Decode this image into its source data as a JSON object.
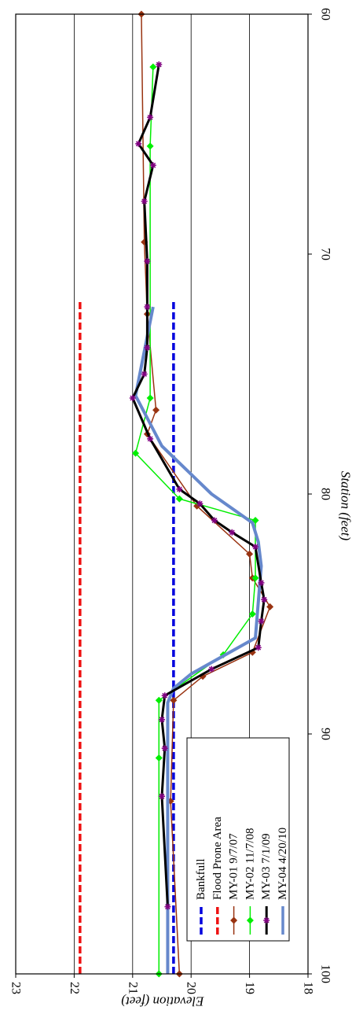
{
  "chart_data": {
    "type": "line",
    "xlabel": "Station (feet)",
    "ylabel": "Elevation (feet)",
    "xlim": [
      60,
      100
    ],
    "ylim": [
      18,
      23
    ],
    "x_ticks": [
      "60",
      "70",
      "80",
      "90",
      "100"
    ],
    "y_ticks": [
      "18",
      "19",
      "20",
      "21",
      "22",
      "23"
    ],
    "grid": "horizontal at each y tick",
    "orientation": "figure rotated 90 degrees clockwise",
    "legend_position": "lower-left",
    "series": [
      {
        "name": "Bankfull",
        "color": "#0000dd",
        "style": "dashed",
        "marker": "none",
        "x": [
          72.0,
          100.0
        ],
        "y": [
          20.3,
          20.3
        ]
      },
      {
        "name": "Flood Prone Area",
        "color": "#ee1111",
        "style": "dashed",
        "marker": "none",
        "x": [
          72.0,
          100.0
        ],
        "y": [
          21.9,
          21.9
        ]
      },
      {
        "name": "MY-01 9/7/07",
        "color": "#993311",
        "style": "solid",
        "marker": "diamond",
        "x": [
          60,
          69.5,
          72.5,
          76.5,
          77.5,
          80.5,
          82.5,
          83.5,
          84.7,
          86.6,
          87.6,
          88.6,
          92.8,
          100
        ],
        "y": [
          20.85,
          20.8,
          20.75,
          20.6,
          20.75,
          19.9,
          19.0,
          18.95,
          18.65,
          18.95,
          19.8,
          20.3,
          20.35,
          20.2
        ]
      },
      {
        "name": "MY-02 11/7/08",
        "color": "#00ee00",
        "style": "solid",
        "marker": "diamond",
        "x": [
          62.2,
          65.5,
          76.0,
          78.3,
          80.2,
          81.1,
          83.5,
          85.0,
          86.7,
          88.6,
          91.0,
          100
        ],
        "y": [
          20.65,
          20.7,
          20.7,
          20.95,
          20.2,
          18.9,
          18.9,
          18.95,
          19.45,
          20.55,
          20.55,
          20.55
        ]
      },
      {
        "name": "MY-03 7/1/09",
        "color": "#000000",
        "style": "solid",
        "marker": "star",
        "x": [
          62.1,
          64.3,
          65.4,
          66.3,
          67.8,
          70.3,
          72.2,
          73.9,
          75.0,
          76.0,
          77.7,
          79.8,
          80.4,
          81.1,
          81.6,
          82.2,
          83.7,
          84.4,
          85.3,
          86.4,
          87.3,
          88.4,
          89.4,
          90.6,
          92.6,
          97.2
        ],
        "y": [
          20.55,
          20.7,
          20.9,
          20.65,
          20.8,
          20.75,
          20.75,
          20.75,
          20.8,
          21.0,
          20.7,
          20.2,
          19.85,
          19.6,
          19.3,
          18.9,
          18.8,
          18.75,
          18.8,
          18.85,
          19.65,
          20.45,
          20.5,
          20.45,
          20.5,
          20.4
        ]
      },
      {
        "name": "MY-04 4/20/10",
        "color": "#6688cc",
        "style": "solid",
        "marker": "none",
        "x": [
          72.2,
          75.9,
          78.0,
          80.0,
          81.2,
          82.0,
          83.0,
          86.0,
          87.5,
          88.1,
          88.7,
          100
        ],
        "y": [
          20.65,
          20.95,
          20.5,
          19.65,
          18.95,
          18.85,
          18.8,
          18.9,
          20.0,
          20.3,
          20.4,
          20.4
        ]
      }
    ]
  }
}
